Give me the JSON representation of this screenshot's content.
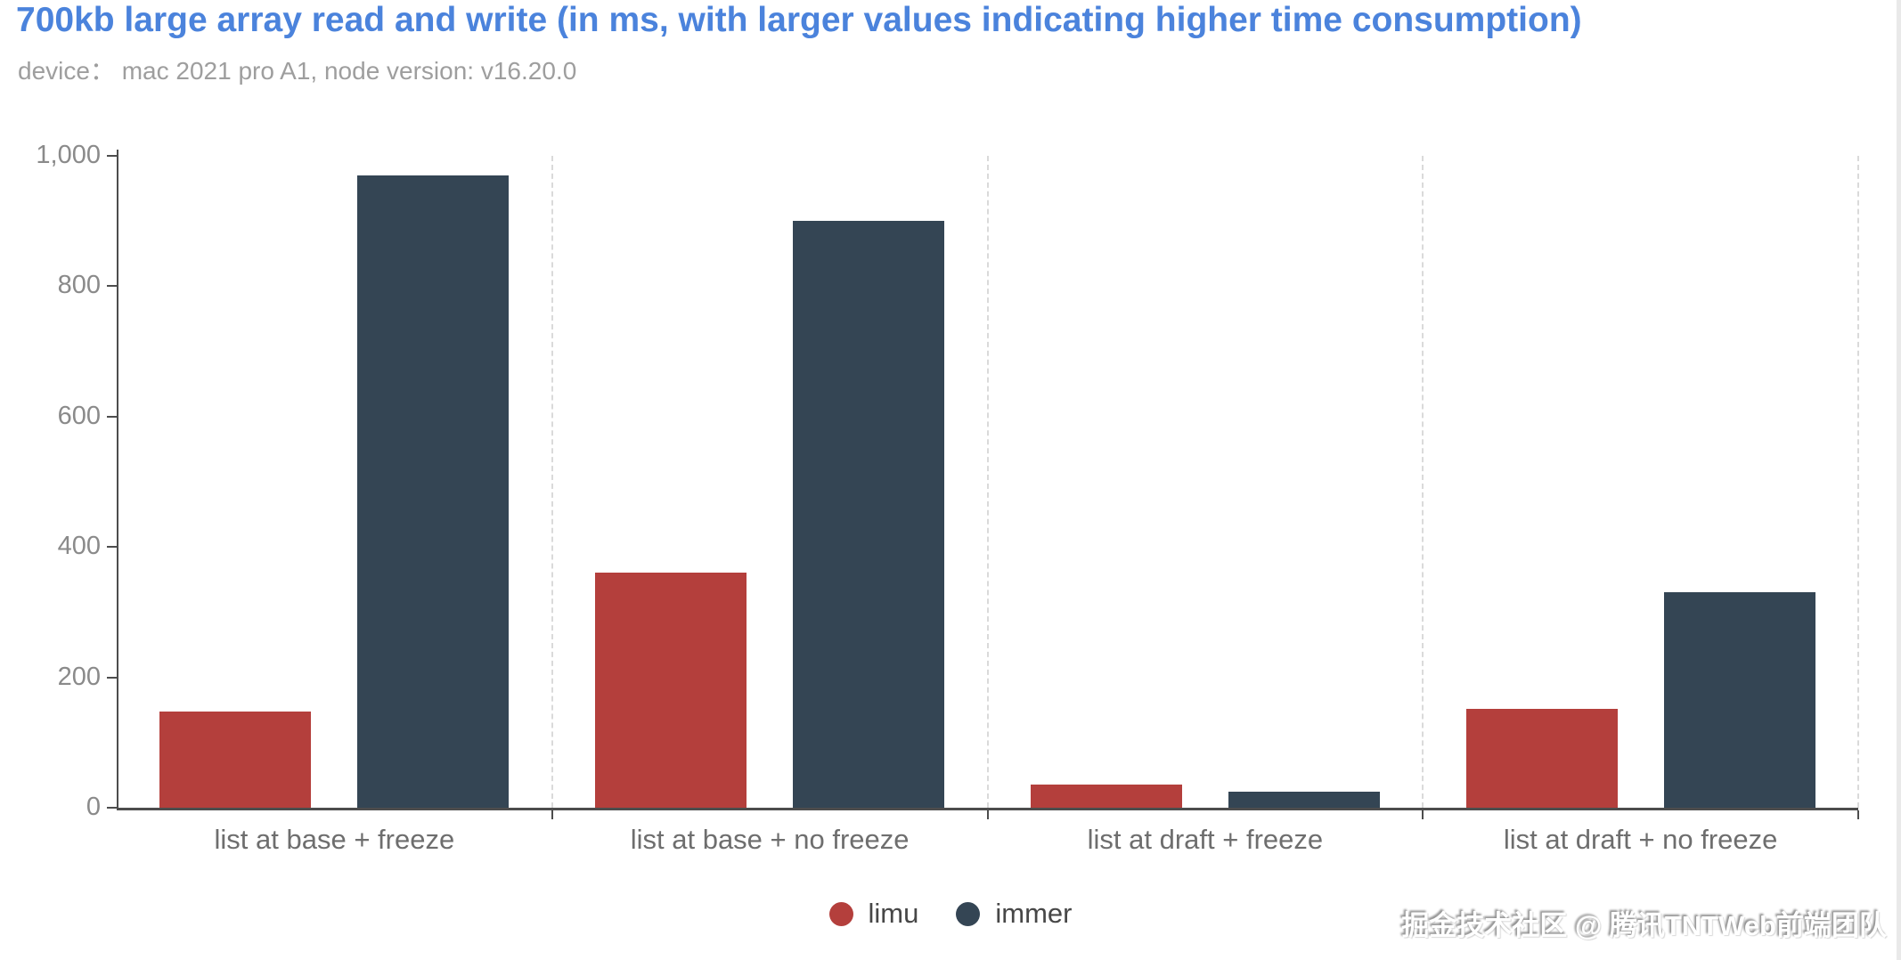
{
  "chart_data": {
    "type": "bar",
    "title": "700kb large array read and write (in ms, with larger values indicating higher time consumption)",
    "subtitle": "device： mac 2021 pro A1, node version: v16.20.0",
    "categories": [
      "list at base + freeze",
      "list at base + no freeze",
      "list at draft + freeze",
      "list at draft + no freeze"
    ],
    "series": [
      {
        "name": "limu",
        "color": "#b43f3c",
        "values": [
          148,
          360,
          35,
          152
        ]
      },
      {
        "name": "immer",
        "color": "#344554",
        "values": [
          970,
          900,
          25,
          330
        ]
      }
    ],
    "xlabel": "",
    "ylabel": "",
    "ylim": [
      0,
      1000
    ],
    "yticks": [
      {
        "value": 0,
        "label": "0"
      },
      {
        "value": 200,
        "label": "200"
      },
      {
        "value": 400,
        "label": "400"
      },
      {
        "value": 600,
        "label": "600"
      },
      {
        "value": 800,
        "label": "800"
      },
      {
        "value": 1000,
        "label": "1,000"
      }
    ],
    "grid": "vertical-dashed-category-separators",
    "legend_position": "bottom-center",
    "title_color": "#4b83dc",
    "subtitle_color": "#9e9e9e"
  },
  "footer": {
    "watermark": "掘金技术社区 @ 腾讯TNTWeb前端团队"
  }
}
